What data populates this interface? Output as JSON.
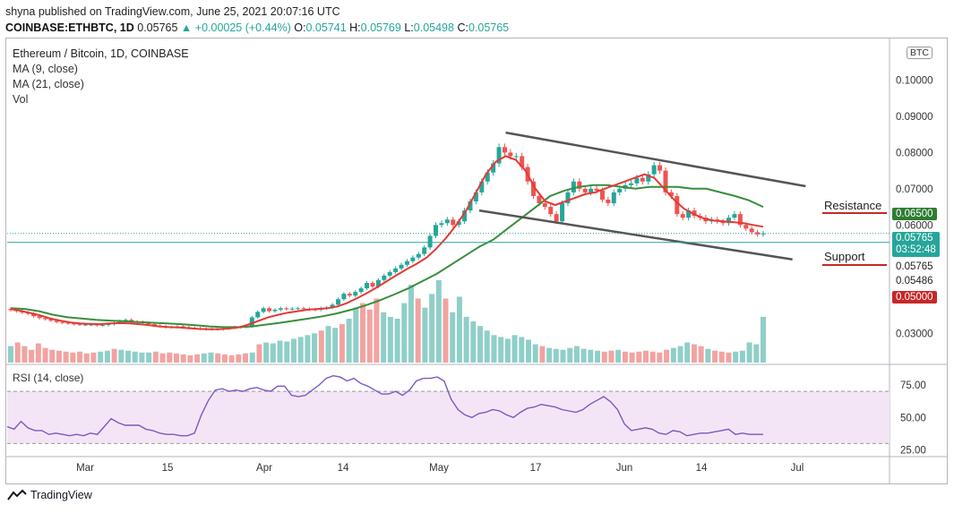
{
  "header": {
    "line1": "shyna published on TradingView.com, June 25, 2021 20:07:16 UTC",
    "symbol": "COINBASE:ETHBTC, 1D",
    "last": "0.05765",
    "change": "▲ +0.00025 (+0.44%)",
    "o_label": "O:",
    "o": "0.05741",
    "h_label": "H:",
    "h": "0.05769",
    "l_label": "L:",
    "l": "0.05498",
    "c_label": "C:",
    "c": "0.05765"
  },
  "legend": {
    "title": "Ethereum / Bitcoin, 1D, COINBASE",
    "ma9": "MA (9, close)",
    "ma21": "MA (21, close)",
    "vol": "Vol"
  },
  "rsi": {
    "label": "RSI (14, close)"
  },
  "badge": "BTC",
  "tags": {
    "resistance_value": "0.06500",
    "current_price": "0.05765",
    "countdown": "03:52:48",
    "price2": "0.05765",
    "price3": "0.05486",
    "support_value": "0.05000"
  },
  "annotations": {
    "resistance": "Resistance",
    "support": "Support"
  },
  "footer": {
    "brand": "TradingView"
  },
  "colors": {
    "up": "#26a69a",
    "down": "#ef5350",
    "ma9": "#e53935",
    "ma21": "#388e3c",
    "rsi": "#7e57c2",
    "rsi_band": "#f3e5f5",
    "resistance": "#c62828",
    "support": "#2e7d32"
  },
  "chart_data": {
    "type": "candlestick",
    "price_axis_labels": [
      "0.10000",
      "0.09000",
      "0.08000",
      "0.07000",
      "0.06000",
      "0.03000"
    ],
    "price_axis_values": [
      0.1,
      0.09,
      0.08,
      0.07,
      0.06,
      0.03
    ],
    "rsi_axis_labels": [
      "75.00",
      "50.00",
      "25.00"
    ],
    "rsi_axis_values": [
      75,
      50,
      25
    ],
    "x_labels": [
      "Mar",
      "15",
      "Apr",
      "14",
      "May",
      "17",
      "Jun",
      "14",
      "Jul"
    ],
    "ylim": [
      0.022,
      0.111
    ],
    "rsi_ylim": [
      20,
      90
    ],
    "rsi_bands": [
      70,
      30
    ],
    "closes": [
      0.0365,
      0.0362,
      0.0358,
      0.0355,
      0.0348,
      0.0343,
      0.034,
      0.0336,
      0.0332,
      0.033,
      0.0328,
      0.0326,
      0.0325,
      0.0325,
      0.0325,
      0.0323,
      0.0324,
      0.0326,
      0.033,
      0.0335,
      0.0338,
      0.0333,
      0.0332,
      0.033,
      0.0326,
      0.0322,
      0.032,
      0.0318,
      0.0318,
      0.032,
      0.0318,
      0.0316,
      0.0315,
      0.0313,
      0.0312,
      0.0313,
      0.0312,
      0.0314,
      0.0316,
      0.0318,
      0.0318,
      0.032,
      0.0345,
      0.036,
      0.037,
      0.0362,
      0.0366,
      0.037,
      0.0368,
      0.0369,
      0.037,
      0.0368,
      0.0367,
      0.0366,
      0.037,
      0.0372,
      0.038,
      0.0395,
      0.041,
      0.0405,
      0.0415,
      0.0425,
      0.044,
      0.043,
      0.0448,
      0.046,
      0.047,
      0.048,
      0.049,
      0.05,
      0.051,
      0.052,
      0.0538,
      0.057,
      0.06,
      0.0605,
      0.0615,
      0.06,
      0.061,
      0.064,
      0.0665,
      0.069,
      0.072,
      0.0745,
      0.077,
      0.0815,
      0.08,
      0.079,
      0.079,
      0.076,
      0.072,
      0.068,
      0.066,
      0.065,
      0.063,
      0.061,
      0.066,
      0.069,
      0.072,
      0.07,
      0.069,
      0.07,
      0.0695,
      0.067,
      0.066,
      0.069,
      0.07,
      0.071,
      0.0715,
      0.073,
      0.072,
      0.074,
      0.0765,
      0.075,
      0.069,
      0.068,
      0.063,
      0.062,
      0.064,
      0.0625,
      0.062,
      0.061,
      0.0615,
      0.061,
      0.0605,
      0.062,
      0.063,
      0.06,
      0.059,
      0.058,
      0.0574,
      0.05765
    ],
    "ma9": [
      0.0368,
      0.0363,
      0.0357,
      0.035,
      0.0342,
      0.0336,
      0.0331,
      0.0328,
      0.0327,
      0.0326,
      0.0328,
      0.0329,
      0.0328,
      0.0326,
      0.0323,
      0.032,
      0.0318,
      0.0317,
      0.0315,
      0.0313,
      0.0312,
      0.0312,
      0.0314,
      0.0317,
      0.0325,
      0.0335,
      0.0345,
      0.0352,
      0.0358,
      0.0362,
      0.0366,
      0.0368,
      0.037,
      0.0375,
      0.0385,
      0.0398,
      0.0412,
      0.0428,
      0.0445,
      0.0462,
      0.0478,
      0.0493,
      0.051,
      0.0535,
      0.0565,
      0.06,
      0.064,
      0.069,
      0.074,
      0.0775,
      0.079,
      0.078,
      0.075,
      0.07,
      0.0665,
      0.0655,
      0.0665,
      0.0675,
      0.0685,
      0.069,
      0.07,
      0.071,
      0.072,
      0.073,
      0.074,
      0.073,
      0.07,
      0.067,
      0.0645,
      0.063,
      0.0618,
      0.0612,
      0.061,
      0.0608,
      0.0605,
      0.06,
      0.0595
    ],
    "ma21": [
      0.037,
      0.0368,
      0.0362,
      0.0352,
      0.0345,
      0.0342,
      0.0338,
      0.0336,
      0.0334,
      0.0332,
      0.033,
      0.0328,
      0.0326,
      0.0323,
      0.032,
      0.0318,
      0.0318,
      0.032,
      0.0325,
      0.033,
      0.0336,
      0.0342,
      0.0348,
      0.0356,
      0.0366,
      0.0378,
      0.0392,
      0.0408,
      0.0425,
      0.0445,
      0.0465,
      0.049,
      0.0515,
      0.054,
      0.056,
      0.059,
      0.062,
      0.065,
      0.068,
      0.0695,
      0.0705,
      0.071,
      0.071,
      0.0705,
      0.07,
      0.0705,
      0.0705,
      0.0705,
      0.07,
      0.07,
      0.069,
      0.068,
      0.0668,
      0.065
    ],
    "rsi": [
      43,
      41,
      47,
      42,
      40,
      40,
      37,
      38,
      37,
      36,
      37,
      36,
      38,
      37,
      43,
      49,
      46,
      44,
      44,
      44,
      41,
      40,
      38,
      37,
      37,
      36,
      36,
      38,
      52,
      63,
      71,
      72,
      70,
      71,
      70,
      72,
      73,
      71,
      70,
      74,
      74,
      67,
      66,
      67,
      71,
      75,
      80,
      82,
      81,
      78,
      80,
      76,
      74,
      71,
      68,
      68,
      70,
      67,
      71,
      78,
      80,
      80,
      81,
      78,
      64,
      56,
      52,
      50,
      53,
      54,
      56,
      55,
      52,
      50,
      54,
      57,
      58,
      60,
      59,
      58,
      56,
      55,
      54,
      56,
      60,
      63,
      66,
      62,
      56,
      45,
      40,
      41,
      42,
      41,
      38,
      37,
      40,
      39,
      36,
      37,
      38,
      38,
      39,
      40,
      41,
      37,
      38,
      37,
      37,
      37
    ],
    "volume": [
      18,
      22,
      18,
      14,
      21,
      16,
      14,
      13,
      12,
      11,
      12,
      10,
      11,
      12,
      13,
      15,
      14,
      13,
      12,
      11,
      11,
      12,
      10,
      11,
      10,
      9,
      8,
      9,
      10,
      11,
      10,
      9,
      8,
      9,
      10,
      11,
      20,
      22,
      21,
      24,
      23,
      26,
      28,
      30,
      32,
      35,
      40,
      38,
      42,
      48,
      60,
      65,
      58,
      70,
      55,
      50,
      48,
      65,
      85,
      70,
      60,
      75,
      90,
      70,
      55,
      72,
      50,
      45,
      40,
      35,
      30,
      28,
      26,
      30,
      28,
      25,
      20,
      18,
      16,
      15,
      14,
      16,
      18,
      15,
      14,
      13,
      12,
      13,
      14,
      12,
      11,
      12,
      13,
      12,
      11,
      14,
      16,
      18,
      22,
      20,
      18,
      15,
      13,
      12,
      11,
      12,
      13,
      22,
      20,
      50
    ],
    "lines": [
      {
        "name": "upper-channel",
        "from": [
          0.565,
          0.0855
        ],
        "to": [
          0.905,
          0.0707
        ]
      },
      {
        "name": "lower-channel",
        "from": [
          0.535,
          0.064
        ],
        "to": [
          0.89,
          0.0505
        ]
      },
      {
        "name": "resistance",
        "level": 0.065
      },
      {
        "name": "support",
        "level": 0.05
      }
    ]
  }
}
